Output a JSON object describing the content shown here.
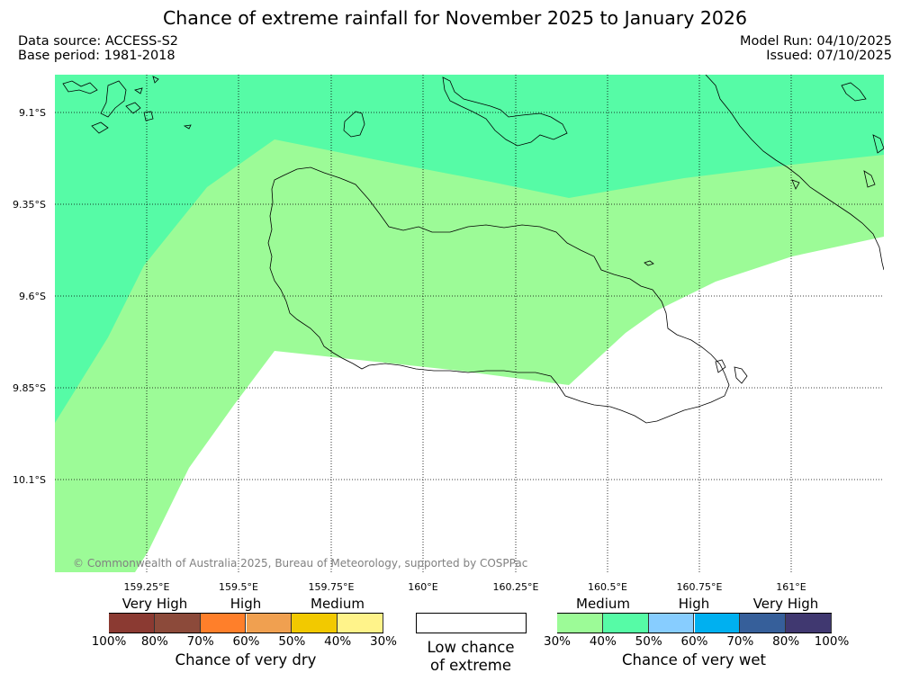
{
  "title": "Chance of extreme rainfall for November 2025 to January 2026",
  "meta_left": {
    "source": "Data source: ACCESS-S2",
    "base": "Base period: 1981-2018"
  },
  "meta_right": {
    "run": "Model Run: 04/10/2025",
    "issued": "Issued: 07/10/2025"
  },
  "map": {
    "lat_labels": [
      "9.1°S",
      "9.35°S",
      "9.6°S",
      "9.85°S",
      "10.1°S"
    ],
    "lon_labels": [
      "159.25°E",
      "159.5°E",
      "159.75°E",
      "160°E",
      "160.25°E",
      "160.5°E",
      "160.75°E",
      "161°E"
    ],
    "copyright": "© Commonwealth of Australia 2025, Bureau of Meteorology, supported by COSPPac",
    "colors": {
      "wet_medium": "#9cfb97",
      "wet_40_50": "#56fba6",
      "land_outline": "#000000"
    }
  },
  "legend": {
    "dry": {
      "categories": [
        "Very High",
        "High",
        "Medium"
      ],
      "ticks": [
        "100%",
        "80%",
        "70%",
        "60%",
        "50%",
        "40%",
        "30%"
      ],
      "colors": [
        "#8b3a32",
        "#8c4a3a",
        "#ff7f2a",
        "#f0a050",
        "#f2c900",
        "#fff38a"
      ],
      "caption": "Chance of very dry"
    },
    "low": {
      "line1": "Low chance",
      "line2": "of extreme"
    },
    "wet": {
      "categories": [
        "Medium",
        "High",
        "Very High"
      ],
      "ticks": [
        "30%",
        "40%",
        "50%",
        "60%",
        "70%",
        "80%",
        "100%"
      ],
      "colors": [
        "#9cfb97",
        "#56fba6",
        "#87cdff",
        "#00b0f0",
        "#365f9a",
        "#403870"
      ],
      "caption": "Chance of very wet"
    }
  }
}
